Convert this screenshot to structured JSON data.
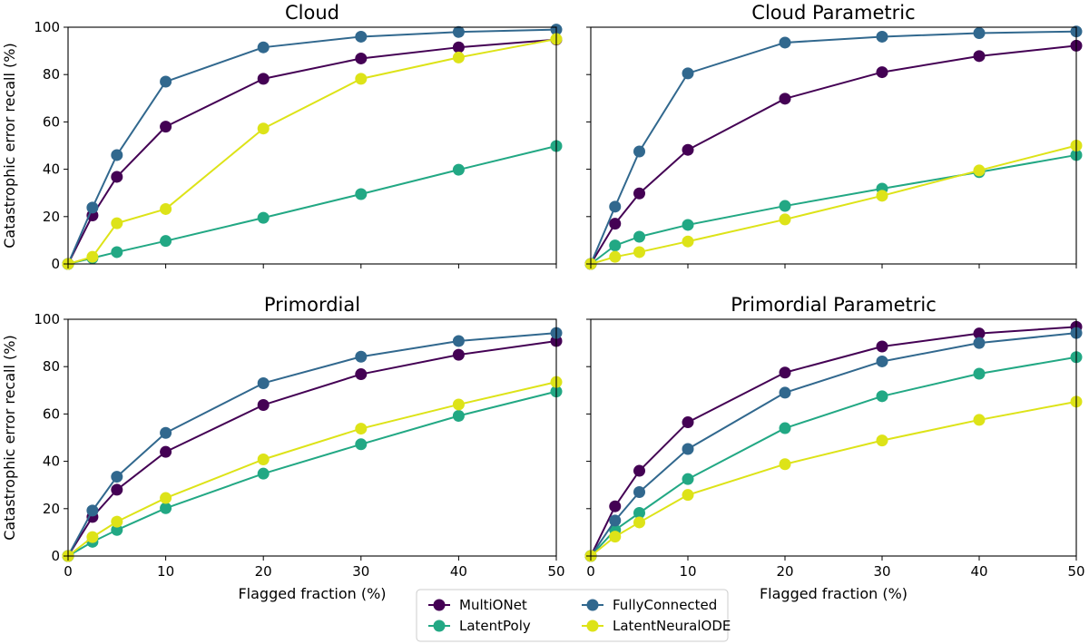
{
  "figure": {
    "shared_xlabel": "Flagged fraction (%)",
    "shared_ylabel": "Catastrophic error recall (%)"
  },
  "series_styles": [
    {
      "name": "MultiONet",
      "color": "#440154"
    },
    {
      "name": "LatentPoly",
      "color": "#22a884"
    },
    {
      "name": "FullyConnected",
      "color": "#31688e"
    },
    {
      "name": "LatentNeuralODE",
      "color": "#dde318"
    }
  ],
  "chart_data": [
    {
      "type": "line",
      "title": "Cloud",
      "xlabel": "",
      "ylabel": "Catastrophic error recall (%)",
      "xlim": [
        0,
        50
      ],
      "ylim": [
        0,
        100
      ],
      "xticks": [
        0,
        10,
        20,
        30,
        40,
        50
      ],
      "yticks": [
        0,
        20,
        40,
        60,
        80,
        100
      ],
      "x": [
        0,
        2.5,
        5,
        10,
        20,
        30,
        40,
        50
      ],
      "series": [
        {
          "name": "MultiONet",
          "values": [
            0,
            20.5,
            36.8,
            58,
            78.2,
            86.8,
            91.5,
            94.8
          ]
        },
        {
          "name": "LatentPoly",
          "values": [
            0,
            2.5,
            5,
            9.7,
            19.5,
            29.5,
            39.8,
            49.8
          ]
        },
        {
          "name": "FullyConnected",
          "values": [
            0,
            23.8,
            46,
            77,
            91.5,
            96,
            98,
            99
          ]
        },
        {
          "name": "LatentNeuralODE",
          "values": [
            0,
            3,
            17.2,
            23.2,
            57.2,
            78.2,
            87.2,
            95
          ]
        }
      ]
    },
    {
      "type": "line",
      "title": "Cloud Parametric",
      "xlabel": "",
      "ylabel": "",
      "xlim": [
        0,
        50
      ],
      "ylim": [
        0,
        100
      ],
      "xticks": [
        0,
        10,
        20,
        30,
        40,
        50
      ],
      "yticks": [
        0,
        20,
        40,
        60,
        80,
        100
      ],
      "x": [
        0,
        2.5,
        5,
        10,
        20,
        30,
        40,
        50
      ],
      "series": [
        {
          "name": "MultiONet",
          "values": [
            0,
            17,
            29.8,
            48.2,
            69.8,
            81,
            87.8,
            92.2
          ]
        },
        {
          "name": "LatentPoly",
          "values": [
            0,
            7.8,
            11.5,
            16.5,
            24.5,
            31.8,
            38.8,
            46
          ]
        },
        {
          "name": "FullyConnected",
          "values": [
            0,
            24.2,
            47.5,
            80.5,
            93.5,
            96,
            97.5,
            98.2
          ]
        },
        {
          "name": "LatentNeuralODE",
          "values": [
            0,
            3,
            5,
            9.5,
            18.8,
            28.8,
            39.5,
            50
          ]
        }
      ]
    },
    {
      "type": "line",
      "title": "Primordial",
      "xlabel": "Flagged fraction (%)",
      "ylabel": "Catastrophic error recall (%)",
      "xlim": [
        0,
        50
      ],
      "ylim": [
        0,
        100
      ],
      "xticks": [
        0,
        10,
        20,
        30,
        40,
        50
      ],
      "yticks": [
        0,
        20,
        40,
        60,
        80,
        100
      ],
      "x": [
        0,
        2.5,
        5,
        10,
        20,
        30,
        40,
        50
      ],
      "series": [
        {
          "name": "MultiONet",
          "values": [
            0,
            16.5,
            28,
            44,
            63.8,
            76.8,
            85,
            90.8
          ]
        },
        {
          "name": "LatentPoly",
          "values": [
            0,
            6,
            11,
            20.2,
            34.8,
            47.2,
            59.2,
            69.5
          ]
        },
        {
          "name": "FullyConnected",
          "values": [
            0,
            19.2,
            33.5,
            52,
            73,
            84.2,
            90.8,
            94.2
          ]
        },
        {
          "name": "LatentNeuralODE",
          "values": [
            0,
            8,
            14.5,
            24.5,
            40.8,
            53.8,
            64,
            73.5
          ]
        }
      ]
    },
    {
      "type": "line",
      "title": "Primordial Parametric",
      "xlabel": "Flagged fraction (%)",
      "ylabel": "",
      "xlim": [
        0,
        50
      ],
      "ylim": [
        0,
        100
      ],
      "xticks": [
        0,
        10,
        20,
        30,
        40,
        50
      ],
      "yticks": [
        0,
        20,
        40,
        60,
        80,
        100
      ],
      "x": [
        0,
        2.5,
        5,
        10,
        20,
        30,
        40,
        50
      ],
      "series": [
        {
          "name": "MultiONet",
          "values": [
            0,
            21,
            36,
            56.5,
            77.5,
            88.5,
            94,
            96.8
          ]
        },
        {
          "name": "LatentPoly",
          "values": [
            0,
            11,
            18.2,
            32.5,
            54,
            67.5,
            77,
            84
          ]
        },
        {
          "name": "FullyConnected",
          "values": [
            0,
            15,
            27,
            45.2,
            69,
            82.2,
            90,
            94.2
          ]
        },
        {
          "name": "LatentNeuralODE",
          "values": [
            0,
            8.2,
            14.2,
            25.8,
            38.8,
            48.8,
            57.5,
            65.2
          ]
        }
      ]
    }
  ],
  "legend": {
    "placement": "bottom-center",
    "entries": [
      "MultiONet",
      "FullyConnected",
      "LatentPoly",
      "LatentNeuralODE"
    ]
  }
}
